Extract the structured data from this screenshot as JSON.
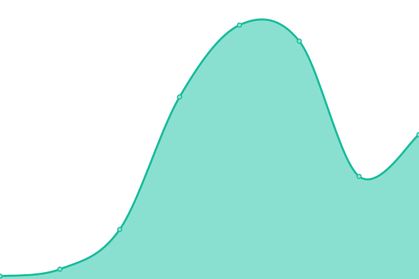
{
  "chart_data": {
    "type": "area",
    "smooth": true,
    "x": [
      0,
      1,
      2,
      3,
      4,
      5,
      6,
      7
    ],
    "values": [
      4,
      14,
      71,
      261,
      364,
      341,
      147,
      207
    ],
    "ylim": [
      0,
      400
    ],
    "xlim": [
      0,
      7
    ],
    "grid": false,
    "axes_visible": false,
    "legend": "none",
    "colors": {
      "line": "#1abc9c",
      "fill": "#8ae0d0",
      "marker_fill": "#8ae0d0"
    }
  }
}
